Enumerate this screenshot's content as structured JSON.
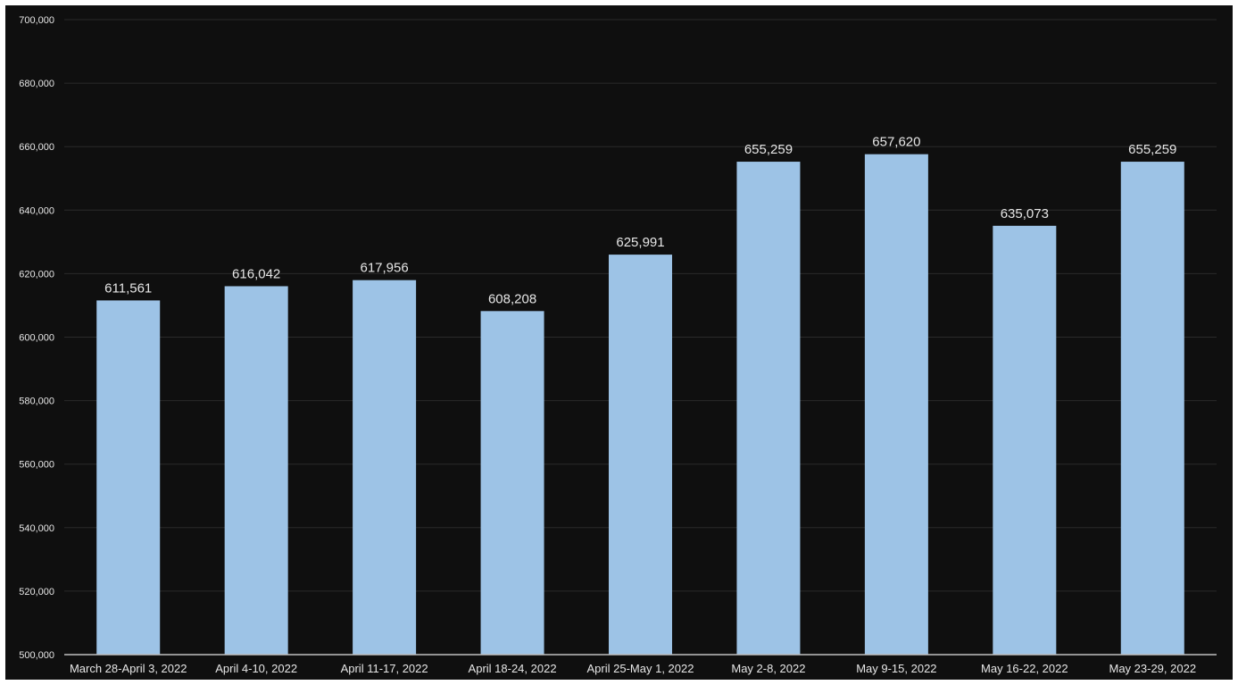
{
  "chart_data": {
    "type": "bar",
    "title": "",
    "xlabel": "",
    "ylabel": "",
    "categories": [
      "March 28-April 3, 2022",
      "April 4-10, 2022",
      "April 11-17, 2022",
      "April 18-24, 2022",
      "April 25-May 1, 2022",
      "May 2-8, 2022",
      "May 9-15, 2022",
      "May 16-22, 2022",
      "May 23-29, 2022"
    ],
    "values": [
      611561,
      616042,
      617956,
      608208,
      625991,
      655259,
      657620,
      635073,
      655259
    ],
    "data_labels": [
      "611,561",
      "616,042",
      "617,956",
      "608,208",
      "625,991",
      "655,259",
      "657,620",
      "635,073",
      "655,259"
    ],
    "ylim": [
      500000,
      700000
    ],
    "yticks": [
      500000,
      520000,
      540000,
      560000,
      580000,
      600000,
      620000,
      640000,
      660000,
      680000,
      700000
    ],
    "ytick_labels": [
      "500,000",
      "520,000",
      "540,000",
      "560,000",
      "580,000",
      "600,000",
      "620,000",
      "640,000",
      "660,000",
      "680,000",
      "700,000"
    ],
    "grid": true,
    "legend": "none",
    "colors": {
      "background": "#0f0f0f",
      "bar": "#9dc3e6",
      "grid": "#2a2a2a",
      "text": "#e6e6e6",
      "axis": "#bfbfbf"
    }
  }
}
